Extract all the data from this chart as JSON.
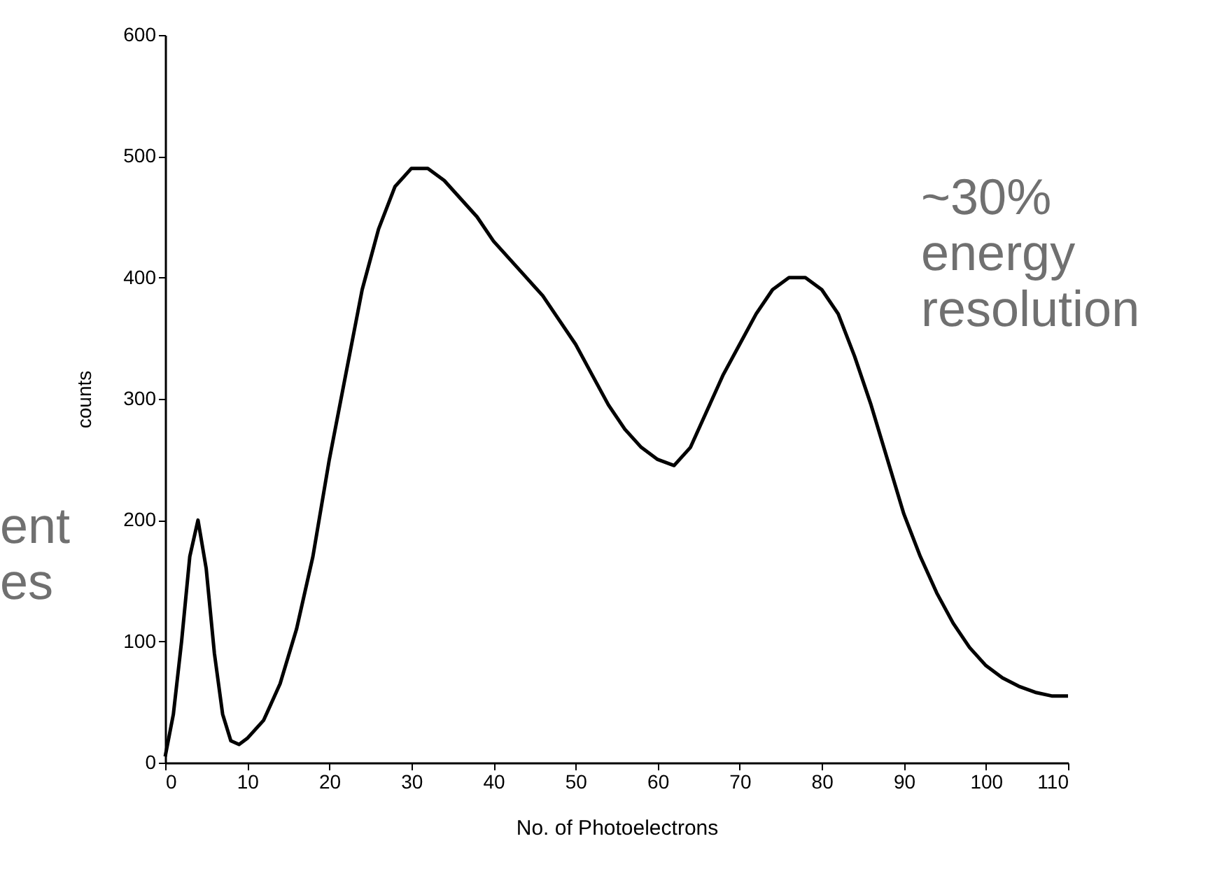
{
  "chart_data": {
    "type": "line",
    "xlabel": "No. of Photoelectrons",
    "ylabel": "counts",
    "annotations": [
      "~30% energy resolution",
      "ent es"
    ],
    "x": [
      0,
      1,
      2,
      3,
      4,
      5,
      6,
      7,
      8,
      9,
      10,
      12,
      14,
      16,
      18,
      20,
      22,
      24,
      26,
      28,
      30,
      32,
      34,
      36,
      38,
      40,
      42,
      44,
      46,
      48,
      50,
      52,
      54,
      56,
      58,
      60,
      62,
      64,
      66,
      68,
      70,
      72,
      74,
      76,
      78,
      80,
      82,
      84,
      86,
      88,
      90,
      92,
      94,
      96,
      98,
      100,
      102,
      104,
      106,
      108,
      110
    ],
    "series": [
      {
        "color": "#000000",
        "values": [
          5,
          40,
          100,
          170,
          200,
          160,
          90,
          40,
          18,
          15,
          20,
          35,
          65,
          110,
          170,
          250,
          320,
          390,
          440,
          475,
          490,
          490,
          480,
          465,
          450,
          430,
          415,
          400,
          385,
          365,
          345,
          320,
          295,
          275,
          260,
          250,
          245,
          260,
          290,
          320,
          345,
          370,
          390,
          400,
          400,
          390,
          370,
          335,
          295,
          250,
          205,
          170,
          140,
          115,
          95,
          80,
          70,
          63,
          58,
          55,
          55
        ]
      }
    ],
    "xlim": [
      0,
      110
    ],
    "xticks": [
      0,
      10,
      20,
      30,
      40,
      50,
      60,
      70,
      80,
      90,
      100,
      110
    ],
    "ylim": [
      0,
      600
    ],
    "yticks": [
      0,
      100,
      200,
      300,
      400,
      500,
      600
    ],
    "grid": false,
    "marker": "none",
    "line_style": "solid"
  }
}
